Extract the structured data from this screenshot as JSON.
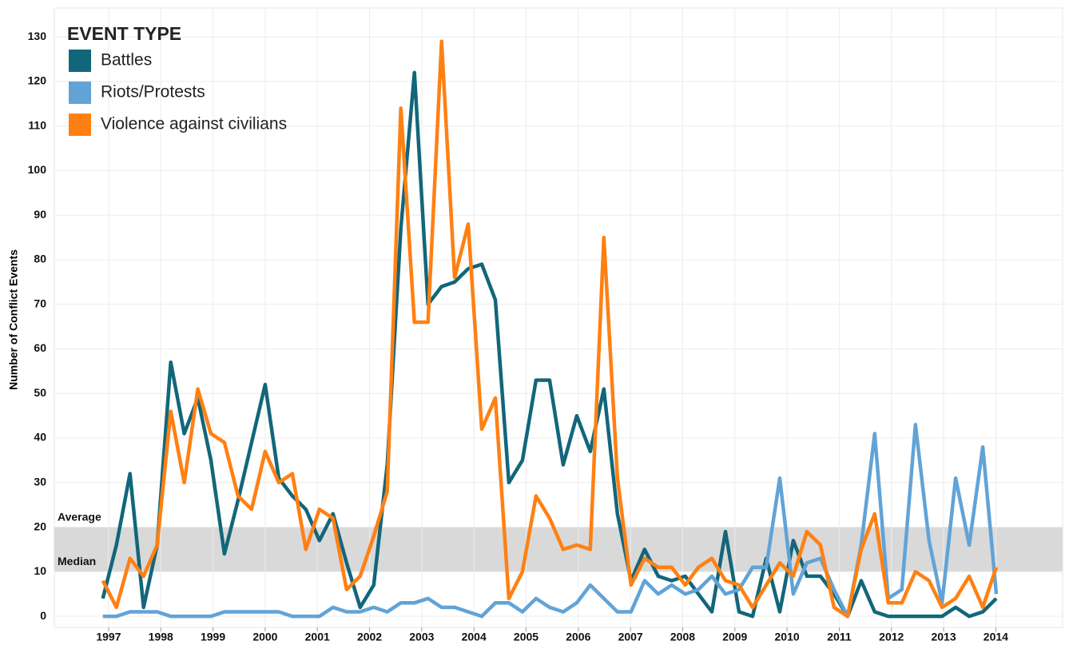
{
  "chart_data": {
    "type": "line",
    "y_label": "Number of Conflict Events",
    "legend_title": "EVENT TYPE",
    "legend": "top-left",
    "grid": true,
    "x": [
      1996.89,
      1997.15,
      1997.41,
      1997.67,
      1997.93,
      1998.19,
      1998.45,
      1998.71,
      1998.96,
      1999.22,
      1999.48,
      1999.74,
      2000.0,
      2000.26,
      2000.52,
      2000.78,
      2001.04,
      2001.3,
      2001.56,
      2001.82,
      2002.08,
      2002.34,
      2002.6,
      2002.86,
      2003.12,
      2003.38,
      2003.63,
      2003.89,
      2004.15,
      2004.41,
      2004.67,
      2004.93,
      2005.19,
      2005.45,
      2005.71,
      2005.97,
      2006.23,
      2006.49,
      2006.75,
      2007.01,
      2007.27,
      2007.53,
      2007.79,
      2008.05,
      2008.3,
      2008.56,
      2008.82,
      2009.08,
      2009.34,
      2009.6,
      2009.86,
      2010.12,
      2010.38,
      2010.64,
      2010.9,
      2011.16,
      2011.42,
      2011.68,
      2011.94,
      2012.2,
      2012.46,
      2012.72,
      2012.97,
      2013.23,
      2013.49,
      2013.75,
      2014.01
    ],
    "xlim": [
      1995.96,
      2015.28
    ],
    "xticks": [
      1997,
      1998,
      1999,
      2000,
      2001,
      2002,
      2003,
      2004,
      2005,
      2006,
      2007,
      2008,
      2009,
      2010,
      2011,
      2012,
      2013,
      2014
    ],
    "ylim": [
      -2.5,
      136.5
    ],
    "yticks": [
      0,
      10,
      20,
      30,
      40,
      50,
      60,
      70,
      80,
      90,
      100,
      110,
      120,
      130
    ],
    "band": {
      "from": 10,
      "to": 20,
      "color": "#d9d9d9"
    },
    "reference_lines": [
      {
        "value": 20,
        "label": "Average"
      },
      {
        "value": 10,
        "label": "Median"
      }
    ],
    "series": [
      {
        "name": "Battles",
        "color": "#12667a",
        "values": [
          4,
          16,
          32,
          2,
          16,
          57,
          41,
          49,
          35,
          14,
          26,
          39,
          52,
          31,
          27,
          24,
          17,
          23,
          12,
          2,
          7,
          34,
          87,
          122,
          70,
          74,
          75,
          78,
          79,
          71,
          30,
          35,
          53,
          53,
          34,
          45,
          37,
          51,
          23,
          8,
          15,
          9,
          8,
          9,
          5,
          1,
          19,
          1,
          0,
          13,
          1,
          17,
          9,
          9,
          5,
          0,
          8,
          1,
          0,
          0,
          0,
          0,
          0,
          2,
          0,
          1,
          4
        ]
      },
      {
        "name": "Riots/Protests",
        "color": "#62a3d6",
        "values": [
          0,
          0,
          1,
          1,
          1,
          0,
          0,
          0,
          0,
          1,
          1,
          1,
          1,
          1,
          0,
          0,
          0,
          2,
          1,
          1,
          2,
          1,
          3,
          3,
          4,
          2,
          2,
          1,
          0,
          3,
          3,
          1,
          4,
          2,
          1,
          3,
          7,
          4,
          1,
          1,
          8,
          5,
          7,
          5,
          6,
          9,
          5,
          6,
          11,
          11,
          31,
          5,
          12,
          13,
          6,
          0,
          16,
          41,
          4,
          6,
          43,
          17,
          3,
          31,
          16,
          38,
          5
        ]
      },
      {
        "name": "Violence against civilians",
        "color": "#ff8012",
        "values": [
          8,
          2,
          13,
          9,
          16,
          46,
          30,
          51,
          41,
          39,
          27,
          24,
          37,
          30,
          32,
          15,
          24,
          22,
          6,
          9,
          18,
          28,
          114,
          66,
          66,
          129,
          76,
          88,
          42,
          49,
          4,
          10,
          27,
          22,
          15,
          16,
          15,
          85,
          31,
          7,
          13,
          11,
          11,
          7,
          11,
          13,
          8,
          7,
          2,
          7,
          12,
          9,
          19,
          16,
          2,
          0,
          15,
          23,
          3,
          3,
          10,
          8,
          2,
          4,
          9,
          2,
          11
        ]
      }
    ]
  }
}
